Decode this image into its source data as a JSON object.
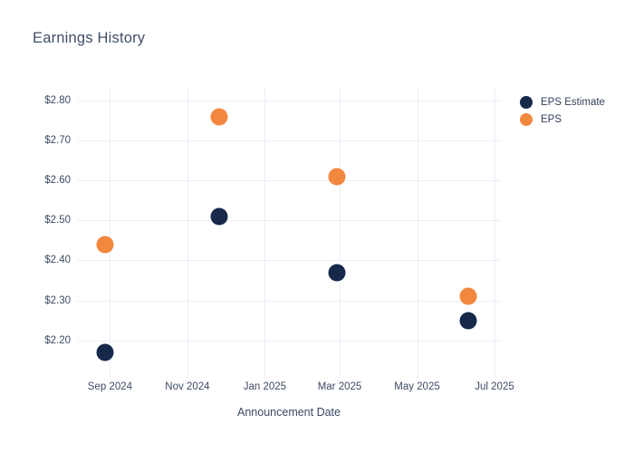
{
  "chart_data": {
    "type": "scatter",
    "title": "Earnings History",
    "xlabel": "Announcement Date",
    "ylabel": "",
    "grid": true,
    "legend_position": "outside-top-right",
    "x_tick_labels": [
      "Sep 2024",
      "Nov 2024",
      "Jan 2025",
      "Mar 2025",
      "May 2025",
      "Jul 2025"
    ],
    "x_tick_dates": [
      "2024-09-01",
      "2024-11-01",
      "2025-01-01",
      "2025-03-01",
      "2025-05-01",
      "2025-07-01"
    ],
    "x_range": [
      "2024-08-06",
      "2025-07-06"
    ],
    "y_tick_labels": [
      "$2.80",
      "$2.70",
      "$2.60",
      "$2.50",
      "$2.40",
      "$2.30",
      "$2.20"
    ],
    "y_ticks": [
      2.8,
      2.7,
      2.6,
      2.5,
      2.4,
      2.3,
      2.2
    ],
    "y_range": [
      2.106,
      2.832
    ],
    "series": [
      {
        "name": "EPS Estimate",
        "color": "#16294b",
        "points": [
          {
            "date": "2024-08-28",
            "value": 2.17
          },
          {
            "date": "2024-11-26",
            "value": 2.51
          },
          {
            "date": "2025-02-27",
            "value": 2.37
          },
          {
            "date": "2025-06-10",
            "value": 2.25
          }
        ]
      },
      {
        "name": "EPS",
        "color": "#f2873e",
        "points": [
          {
            "date": "2024-08-28",
            "value": 2.44
          },
          {
            "date": "2024-11-26",
            "value": 2.76
          },
          {
            "date": "2025-02-27",
            "value": 2.61
          },
          {
            "date": "2025-06-10",
            "value": 2.31
          }
        ]
      }
    ],
    "colors": {
      "background": "#ffffff",
      "gridline": "#ebeff7",
      "title_text": "#3f4e68",
      "tick_text": "#3d4b64"
    }
  }
}
